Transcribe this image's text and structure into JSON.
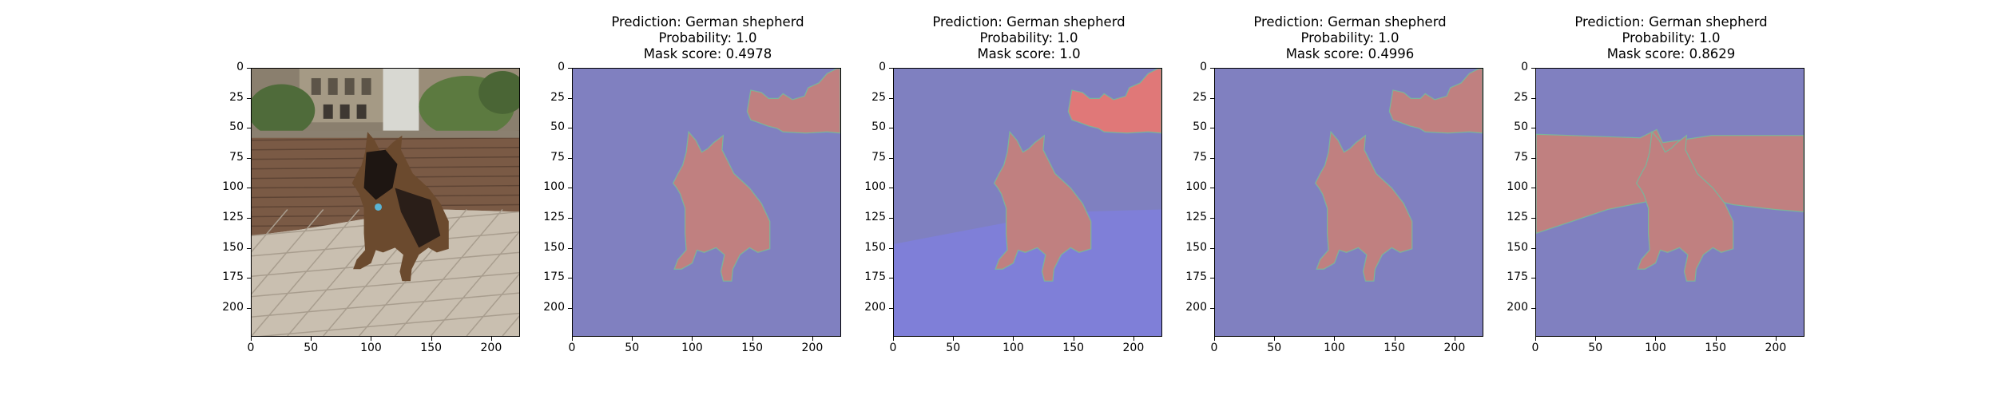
{
  "panels": [
    {
      "id": "original",
      "title_lines": []
    },
    {
      "id": "mask1",
      "title_lines": [
        "Prediction: German shepherd",
        "Probability: 1.0",
        "Mask score: 0.4978"
      ]
    },
    {
      "id": "mask2",
      "title_lines": [
        "Prediction: German shepherd",
        "Probability: 1.0",
        "Mask score: 1.0"
      ]
    },
    {
      "id": "mask3",
      "title_lines": [
        "Prediction: German shepherd",
        "Probability: 1.0",
        "Mask score: 0.4996"
      ]
    },
    {
      "id": "mask4",
      "title_lines": [
        "Prediction: German shepherd",
        "Probability: 1.0",
        "Mask score: 0.8629"
      ]
    }
  ],
  "axis": {
    "xticks": [
      "0",
      "50",
      "100",
      "150",
      "200"
    ],
    "yticks": [
      "0",
      "25",
      "50",
      "75",
      "100",
      "125",
      "150",
      "175",
      "200"
    ],
    "range": [
      0,
      224
    ]
  },
  "colors": {
    "background_region": "#8080c0",
    "foreground_region": "#c08080",
    "highlight_foreground": "#e07878",
    "highlight_background": "#7f7fd8",
    "border": "#7ab59a"
  }
}
